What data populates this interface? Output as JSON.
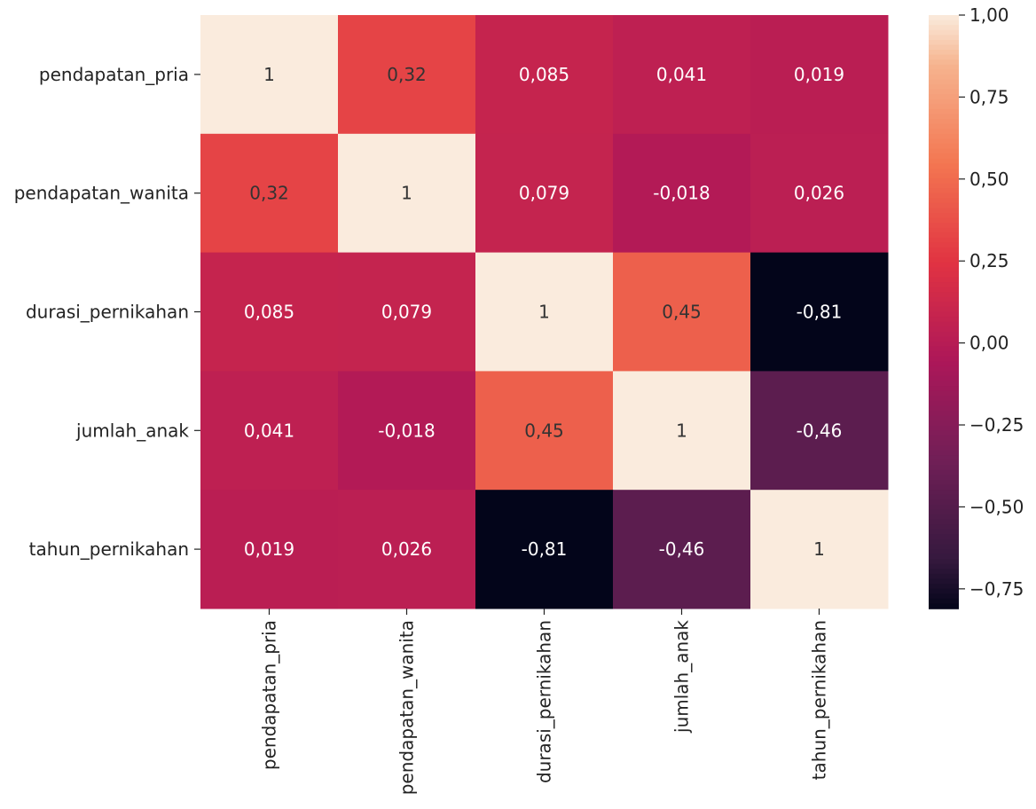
{
  "chart_data": {
    "type": "heatmap",
    "title": "",
    "xlabel": "",
    "ylabel": "",
    "x_labels": [
      "pendapatan_pria",
      "pendapatan_wanita",
      "durasi_pernikahan",
      "jumlah_anak",
      "tahun_pernikahan"
    ],
    "y_labels": [
      "pendapatan_pria",
      "pendapatan_wanita",
      "durasi_pernikahan",
      "jumlah_anak",
      "tahun_pernikahan"
    ],
    "values": [
      [
        1,
        0.32,
        0.085,
        0.041,
        0.019
      ],
      [
        0.32,
        1,
        0.079,
        -0.018,
        0.026
      ],
      [
        0.085,
        0.079,
        1,
        0.45,
        -0.81
      ],
      [
        0.041,
        -0.018,
        0.45,
        1,
        -0.46
      ],
      [
        0.019,
        0.026,
        -0.81,
        -0.46,
        1
      ]
    ],
    "annotations": [
      [
        "1",
        "0,32",
        "0,085",
        "0,041",
        "0,019"
      ],
      [
        "0,32",
        "1",
        "0,079",
        "-0,018",
        "0,026"
      ],
      [
        "0,085",
        "0,079",
        "1",
        "0,45",
        "-0,81"
      ],
      [
        "0,041",
        "-0,018",
        "0,45",
        "1",
        "-0,46"
      ],
      [
        "0,019",
        "0,026",
        "-0,81",
        "-0,46",
        "1"
      ]
    ],
    "colormap": "rocket",
    "colorbar": {
      "range": [
        -0.81,
        1.0
      ],
      "ticks": [
        1.0,
        0.75,
        0.5,
        0.25,
        0.0,
        -0.25,
        -0.5,
        -0.75
      ],
      "tick_labels": [
        "1,00",
        "0,75",
        "0,50",
        "0,25",
        "0,00",
        "−0,25",
        "−0,50",
        "−0,75"
      ],
      "position": "right"
    },
    "grid": false
  }
}
